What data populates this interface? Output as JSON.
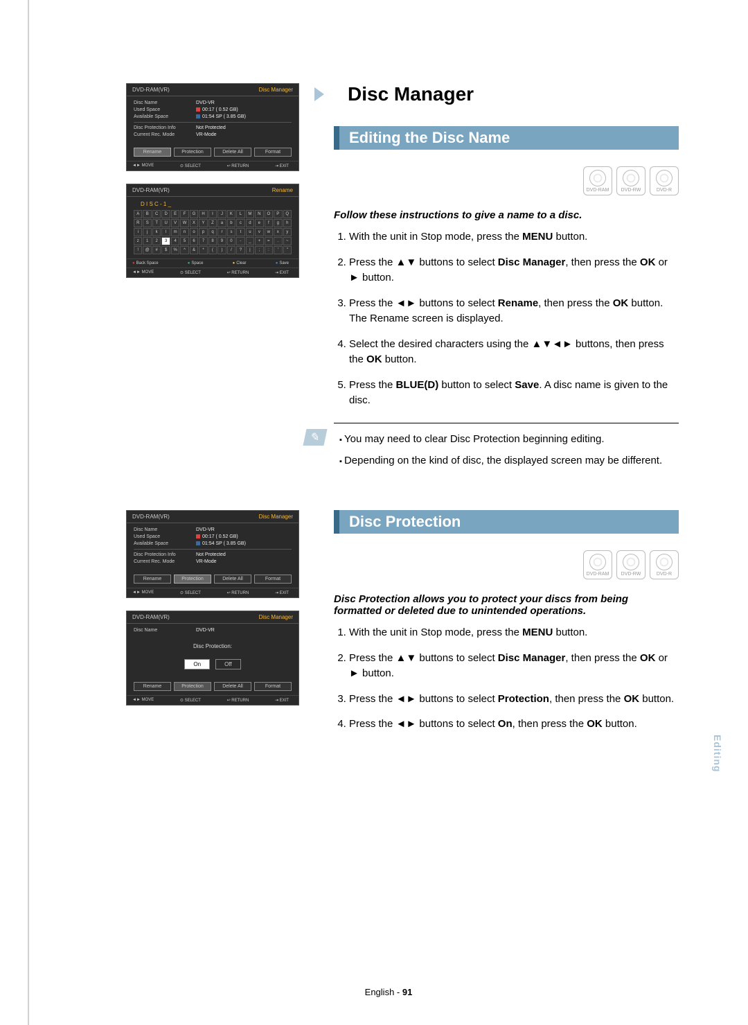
{
  "main_title": "Disc Manager",
  "sections": {
    "edit": {
      "title": "Editing the Disc Name",
      "disc_types": [
        "DVD-RAM",
        "DVD-RW",
        "DVD-R"
      ],
      "lead": "Follow these instructions to give a name to a disc.",
      "steps": [
        {
          "pre": "With the unit in Stop mode, press the ",
          "bold": "MENU",
          "post": " button."
        },
        {
          "pre": "Press the ▲▼ buttons to select ",
          "bold": "Disc Manager",
          "post": ", then press the ",
          "bold2": "OK",
          "post2": " or ► button."
        },
        {
          "pre": "Press the ◄► buttons to select ",
          "bold": "Rename",
          "post": ", then press the ",
          "bold2": "OK",
          "post2": " button. The Rename screen is displayed."
        },
        {
          "pre": "Select the desired characters using the ▲▼◄► buttons, then press the ",
          "bold": "OK",
          "post": " button."
        },
        {
          "pre": "Press the ",
          "bold": "BLUE(D)",
          "post": " button to select ",
          "bold2": "Save",
          "post2": ". A disc name is given to the disc."
        }
      ],
      "notes": [
        "You may need to clear Disc Protection beginning editing.",
        "Depending on the kind of disc, the displayed screen may be different."
      ]
    },
    "protect": {
      "title": "Disc Protection",
      "disc_types": [
        "DVD-RAM",
        "DVD-RW",
        "DVD-R"
      ],
      "lead": "Disc Protection allows you to protect your discs from being formatted or deleted due to unintended operations.",
      "steps": [
        {
          "pre": "With the unit in Stop mode, press the ",
          "bold": "MENU",
          "post": " button."
        },
        {
          "pre": "Press the ▲▼ buttons to select ",
          "bold": "Disc Manager",
          "post": ", then press the ",
          "bold2": "OK",
          "post2": " or ► button."
        },
        {
          "pre": "Press the ◄► buttons to select ",
          "bold": "Protection",
          "post": ", then press the ",
          "bold2": "OK",
          "post2": " button."
        },
        {
          "pre": "Press the ◄► buttons to select ",
          "bold": "On",
          "post": ", then press the ",
          "bold2": "OK",
          "post2": " button."
        }
      ]
    }
  },
  "osd": {
    "header_left": "DVD-RAM(VR)",
    "header_right_mgr": "Disc Manager",
    "header_right_ren": "Rename",
    "info": {
      "disc_name_k": "Disc Name",
      "disc_name_v": "DVD-VR",
      "used_k": "Used Space",
      "used_v": "00:17   ( 0.52 GB)",
      "avail_k": "Available Space",
      "avail_v": "01:54 SP   ( 3.85 GB)",
      "prot_k": "Disc Protection Info",
      "prot_v": "Not Protected",
      "rec_k": "Current Rec. Mode",
      "rec_v": "VR-Mode"
    },
    "buttons": {
      "rename": "Rename",
      "protection": "Protection",
      "delete_all": "Delete All",
      "format": "Format"
    },
    "footer": {
      "move": "◄► MOVE",
      "select": "⊙ SELECT",
      "return": "↩ RETURN",
      "exit": "⇥ EXIT"
    },
    "rename_footer": {
      "back": "Back Space",
      "space": "Space",
      "clear": "Clear",
      "save": "Save"
    },
    "disc_label": "D I S C - 1 _",
    "keys": [
      "A",
      "B",
      "C",
      "D",
      "E",
      "F",
      "G",
      "H",
      "I",
      "J",
      "K",
      "L",
      "M",
      "N",
      "O",
      "P",
      "Q",
      "R",
      "S",
      "T",
      "U",
      "V",
      "W",
      "X",
      "Y",
      "Z",
      "a",
      "b",
      "c",
      "d",
      "e",
      "f",
      "g",
      "h",
      "i",
      "j",
      "k",
      "l",
      "m",
      "n",
      "o",
      "p",
      "q",
      "r",
      "s",
      "t",
      "u",
      "v",
      "w",
      "x",
      "y",
      "z",
      "1",
      "2",
      "3",
      "4",
      "5",
      "6",
      "7",
      "8",
      "9",
      "0",
      "-",
      "_",
      "+",
      "=",
      ".",
      "~",
      "!",
      "@",
      "#",
      "$",
      "%",
      "^",
      "&",
      "*",
      "(",
      ")",
      "/",
      "?",
      "|",
      ";",
      ":",
      "'",
      "\""
    ],
    "protection_label": "Disc Protection:",
    "on": "On",
    "off": "Off"
  },
  "side_tab": "Editing",
  "footer": {
    "lang": "English",
    "page": "91"
  }
}
